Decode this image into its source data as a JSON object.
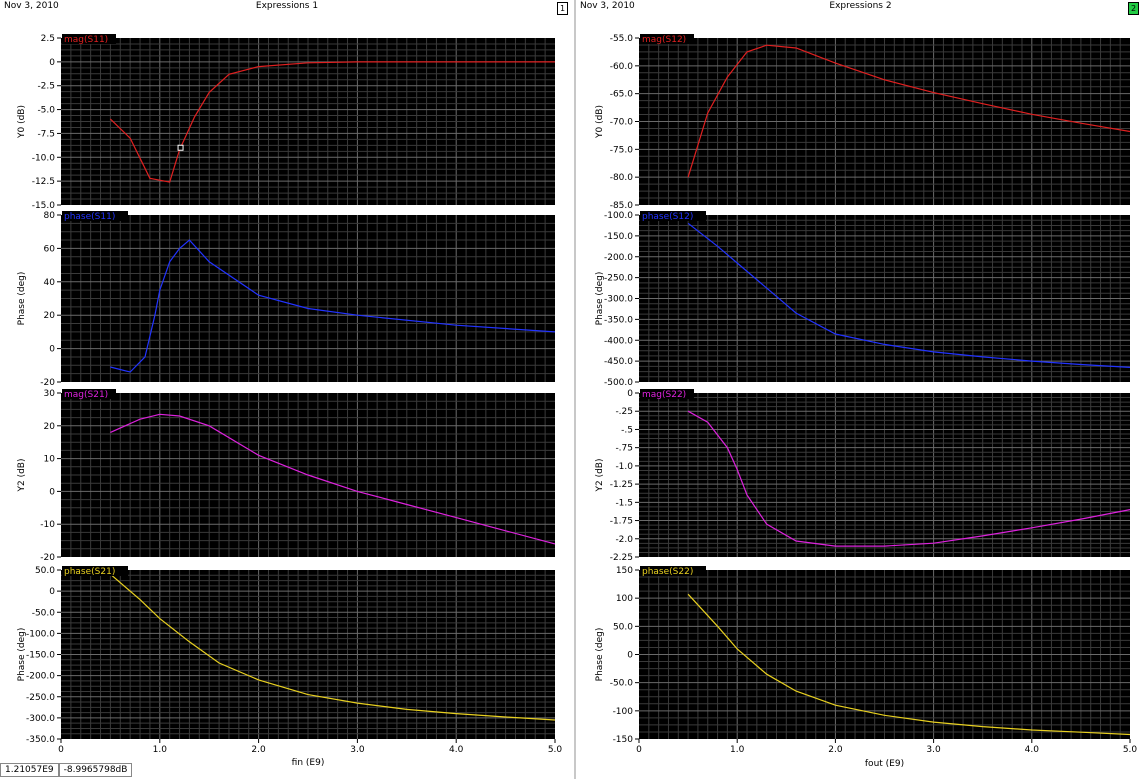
{
  "windows": [
    {
      "date": "Nov 3, 2010",
      "title": "Expressions 1",
      "number": "1",
      "xlabel": "fin (E9)",
      "xticks": [
        "0",
        "1.0",
        "2.0",
        "3.0",
        "4.0",
        "5.0"
      ]
    },
    {
      "date": "Nov 3, 2010",
      "title": "Expressions 2",
      "number": "2",
      "xlabel": "fout (E9)",
      "xticks": [
        "0",
        "1.0",
        "2.0",
        "3.0",
        "4.0",
        "5.0"
      ]
    }
  ],
  "status": {
    "x_readout": "1.21057E9",
    "y_readout": "-8.9965798dB"
  },
  "colors": {
    "plot_bg": "#000000",
    "grid": "#3a3a3a",
    "grid_major": "#6a6a6a",
    "red": "#e02020",
    "blue": "#2233ff",
    "magenta": "#dd22dd",
    "yellow": "#e8d020"
  },
  "chart_data": [
    {
      "type": "line",
      "window": 0,
      "name": "mag(S11)",
      "ylabel": "Y0 (dB)",
      "color": "red",
      "xlim": [
        0,
        5
      ],
      "ylim": [
        -15,
        2.5
      ],
      "yticks": [
        -15,
        -12.5,
        -10,
        -7.5,
        -5,
        -2.5,
        0,
        2.5
      ],
      "ytick_labels": [
        "-15.0",
        "-12.5",
        "-10.0",
        "-7.5",
        "-5.0",
        "-2.5",
        "0",
        "2.5"
      ],
      "x": [
        0.5,
        0.7,
        0.9,
        1.1,
        1.2,
        1.35,
        1.5,
        1.7,
        2.0,
        2.5,
        3.0,
        4.0,
        5.0
      ],
      "y": [
        -6,
        -8,
        -12.2,
        -12.6,
        -9.2,
        -5.8,
        -3.2,
        -1.3,
        -0.5,
        -0.1,
        0,
        0,
        0
      ],
      "marker": [
        1.21,
        -9.0
      ]
    },
    {
      "type": "line",
      "window": 0,
      "name": "phase(S11)",
      "ylabel": "Phase (deg)",
      "color": "blue",
      "xlim": [
        0,
        5
      ],
      "ylim": [
        -20,
        80
      ],
      "yticks": [
        -20,
        0,
        20,
        40,
        60,
        80
      ],
      "ytick_labels": [
        "-20",
        "0",
        "20",
        "40",
        "60",
        "80"
      ],
      "x": [
        0.5,
        0.7,
        0.85,
        0.95,
        1.0,
        1.1,
        1.2,
        1.3,
        1.5,
        2.0,
        2.5,
        3.0,
        4.0,
        5.0
      ],
      "y": [
        -11,
        -14,
        -5,
        20,
        35,
        52,
        60,
        65,
        52,
        32,
        24,
        20,
        14,
        10
      ]
    },
    {
      "type": "line",
      "window": 0,
      "name": "mag(S21)",
      "ylabel": "Y2 (dB)",
      "color": "magenta",
      "xlim": [
        0,
        5
      ],
      "ylim": [
        -20,
        30
      ],
      "yticks": [
        -20,
        -10,
        0,
        10,
        20,
        30
      ],
      "ytick_labels": [
        "-20",
        "-10",
        "0",
        "10",
        "20",
        "30"
      ],
      "x": [
        0.5,
        0.8,
        1.0,
        1.2,
        1.5,
        2.0,
        2.5,
        3.0,
        3.5,
        4.0,
        4.5,
        5.0
      ],
      "y": [
        18,
        22,
        23.5,
        23,
        20,
        11,
        5,
        0,
        -4,
        -8,
        -12,
        -16
      ]
    },
    {
      "type": "line",
      "window": 0,
      "name": "phase(S21)",
      "ylabel": "Phase (deg)",
      "color": "yellow",
      "xlim": [
        0,
        5
      ],
      "ylim": [
        -350,
        50
      ],
      "yticks": [
        -350,
        -300,
        -250,
        -200,
        -150,
        -100,
        -50,
        0,
        50
      ],
      "ytick_labels": [
        "-350.0",
        "-300.0",
        "-250.0",
        "-200.0",
        "-150.0",
        "-100.0",
        "-50.0",
        "0",
        "50.0"
      ],
      "x": [
        0.5,
        0.8,
        1.0,
        1.3,
        1.6,
        2.0,
        2.5,
        3.0,
        3.5,
        4.0,
        4.5,
        5.0
      ],
      "y": [
        40,
        -20,
        -65,
        -120,
        -170,
        -210,
        -245,
        -265,
        -280,
        -290,
        -298,
        -305
      ]
    },
    {
      "type": "line",
      "window": 1,
      "name": "mag(S12)",
      "ylabel": "Y0 (dB)",
      "color": "red",
      "xlim": [
        0,
        5
      ],
      "ylim": [
        -85,
        -55
      ],
      "yticks": [
        -85,
        -80,
        -75,
        -70,
        -65,
        -60,
        -55
      ],
      "ytick_labels": [
        "-85.0",
        "-80.0",
        "-75.0",
        "-70.0",
        "-65.0",
        "-60.0",
        "-55.0"
      ],
      "x": [
        0.5,
        0.7,
        0.9,
        1.1,
        1.3,
        1.6,
        2.0,
        2.5,
        3.0,
        3.5,
        4.0,
        4.5,
        5.0
      ],
      "y": [
        -80,
        -68.5,
        -62,
        -57.5,
        -56.3,
        -56.8,
        -59.5,
        -62.5,
        -64.8,
        -66.8,
        -68.7,
        -70.3,
        -71.8
      ]
    },
    {
      "type": "line",
      "window": 1,
      "name": "phase(S12)",
      "ylabel": "Phase (deg)",
      "color": "blue",
      "xlim": [
        0,
        5
      ],
      "ylim": [
        -500,
        -100
      ],
      "yticks": [
        -500,
        -450,
        -400,
        -350,
        -300,
        -250,
        -200,
        -150,
        -100
      ],
      "ytick_labels": [
        "-500.0",
        "-450.0",
        "-400.0",
        "-350.0",
        "-300.0",
        "-250.0",
        "-200.0",
        "-150.0",
        "-100.0"
      ],
      "x": [
        0.5,
        0.8,
        1.0,
        1.3,
        1.6,
        2.0,
        2.5,
        3.0,
        3.5,
        4.0,
        4.5,
        5.0
      ],
      "y": [
        -120,
        -175,
        -215,
        -275,
        -335,
        -385,
        -410,
        -428,
        -440,
        -450,
        -458,
        -465
      ]
    },
    {
      "type": "line",
      "window": 1,
      "name": "mag(S22)",
      "ylabel": "Y2 (dB)",
      "color": "magenta",
      "xlim": [
        0,
        5
      ],
      "ylim": [
        -2.25,
        0
      ],
      "yticks": [
        -2.25,
        -2,
        -1.75,
        -1.5,
        -1.25,
        -1,
        -0.75,
        -0.5,
        -0.25,
        0
      ],
      "ytick_labels": [
        "-2.25",
        "-2.0",
        "-1.75",
        "-1.5",
        "-1.25",
        "-1.0",
        "-.75",
        "-.5",
        "-.25",
        "0"
      ],
      "x": [
        0.5,
        0.7,
        0.9,
        1.0,
        1.1,
        1.3,
        1.6,
        2.0,
        2.5,
        3.0,
        3.5,
        4.0,
        4.5,
        5.0
      ],
      "y": [
        -0.25,
        -0.4,
        -0.75,
        -1.05,
        -1.4,
        -1.8,
        -2.03,
        -2.1,
        -2.1,
        -2.06,
        -1.96,
        -1.85,
        -1.73,
        -1.6
      ]
    },
    {
      "type": "line",
      "window": 1,
      "name": "phase(S22)",
      "ylabel": "Phase (deg)",
      "color": "yellow",
      "xlim": [
        0,
        5
      ],
      "ylim": [
        -150,
        150
      ],
      "yticks": [
        -150,
        -100,
        -50,
        0,
        50,
        100,
        150
      ],
      "ytick_labels": [
        "-150",
        "-100",
        "-50.0",
        "0",
        "50.0",
        "100",
        "150"
      ],
      "x": [
        0.5,
        0.8,
        1.0,
        1.3,
        1.6,
        2.0,
        2.5,
        3.0,
        3.5,
        4.0,
        4.5,
        5.0
      ],
      "y": [
        107,
        50,
        10,
        -35,
        -65,
        -90,
        -108,
        -120,
        -128,
        -134,
        -138,
        -142
      ]
    }
  ]
}
